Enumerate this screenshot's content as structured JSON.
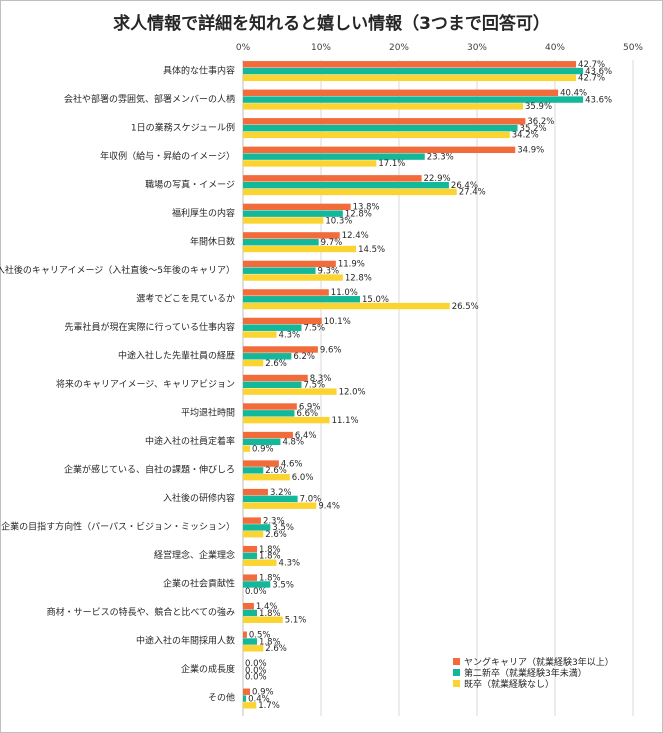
{
  "chart_data": {
    "type": "bar",
    "orientation": "horizontal",
    "title": "求人情報で詳細を知れると嬉しい情報（3つまで回答可）",
    "xlim": [
      0,
      50
    ],
    "ticks": [
      "0%",
      "10%",
      "20%",
      "30%",
      "40%",
      "50%"
    ],
    "tick_values": [
      0,
      10,
      20,
      30,
      40,
      50
    ],
    "grid": true,
    "legend_position": "bottom-right",
    "categories": [
      "具体的な仕事内容",
      "会社や部署の雰囲気、部署メンバーの人柄",
      "1日の業務スケジュール例",
      "年収例（給与・昇給のイメージ）",
      "職場の写真・イメージ",
      "福利厚生の内容",
      "年間休日数",
      "入社後のキャリアイメージ（入社直後～5年後のキャリア）",
      "選考でどこを見ているか",
      "先輩社員が現在実際に行っている仕事内容",
      "中途入社した先輩社員の経歴",
      "将来のキャリアイメージ、キャリアビジョン",
      "平均退社時間",
      "中途入社の社員定着率",
      "企業が感じている、自社の課題・伸びしろ",
      "入社後の研修内容",
      "企業の目指す方向性（パーパス・ビジョン・ミッション）",
      "経営理念、企業理念",
      "企業の社会貢献性",
      "商材・サービスの特長や、競合と比べての強み",
      "中途入社の年間採用人数",
      "企業の成長度",
      "その他"
    ],
    "series": [
      {
        "name": "ヤングキャリア（就業経験3年以上）",
        "color": "#f26b3a",
        "values": [
          42.7,
          40.4,
          36.2,
          34.9,
          22.9,
          13.8,
          12.4,
          11.9,
          11.0,
          10.1,
          9.6,
          8.3,
          6.9,
          6.4,
          4.6,
          3.2,
          2.3,
          1.8,
          1.8,
          1.4,
          0.5,
          0.0,
          0.9
        ],
        "labels": [
          "42.7%",
          "40.4%",
          "36.2%",
          "34.9%",
          "22.9%",
          "13.8%",
          "12.4%",
          "11.9%",
          "11.0%",
          "10.1%",
          "9.6%",
          "8.3%",
          "6.9%",
          "6.4%",
          "4.6%",
          "3.2%",
          "2.3%",
          "1.8%",
          "1.8%",
          "1.4%",
          "0.5%",
          "0.0%",
          "0.9%"
        ]
      },
      {
        "name": "第二新卒（就業経験3年未満）",
        "color": "#13b89a",
        "values": [
          43.6,
          43.6,
          35.2,
          23.3,
          26.4,
          12.8,
          9.7,
          9.3,
          15.0,
          7.5,
          6.2,
          7.5,
          6.6,
          4.8,
          2.6,
          7.0,
          3.5,
          1.8,
          3.5,
          1.8,
          1.8,
          0.0,
          0.4
        ],
        "labels": [
          "43.6%",
          "43.6%",
          "35.2%",
          "23.3%",
          "26.4%",
          "12.8%",
          "9.7%",
          "9.3%",
          "15.0%",
          "7.5%",
          "6.2%",
          "7.5%",
          "6.6%",
          "4.8%",
          "2.6%",
          "7.0%",
          "3.5%",
          "1.8%",
          "3.5%",
          "1.8%",
          "1.8%",
          "0.0%",
          "0.4%"
        ]
      },
      {
        "name": "既卒（就業経験なし）",
        "color": "#fcd431",
        "values": [
          42.7,
          35.9,
          34.2,
          17.1,
          27.4,
          10.3,
          14.5,
          12.8,
          26.5,
          4.3,
          2.6,
          12.0,
          11.1,
          0.9,
          6.0,
          9.4,
          2.6,
          4.3,
          0.0,
          5.1,
          2.6,
          0.0,
          1.7
        ],
        "labels": [
          "42.7%",
          "35.9%",
          "34.2%",
          "17.1%",
          "27.4%",
          "10.3%",
          "14.5%",
          "12.8%",
          "26.5%",
          "4.3%",
          "2.6%",
          "12.0%",
          "11.1%",
          "0.9%",
          "6.0%",
          "9.4%",
          "2.6%",
          "4.3%",
          "0.0%",
          "5.1%",
          "2.6%",
          "0.0%",
          "1.7%"
        ]
      }
    ]
  }
}
